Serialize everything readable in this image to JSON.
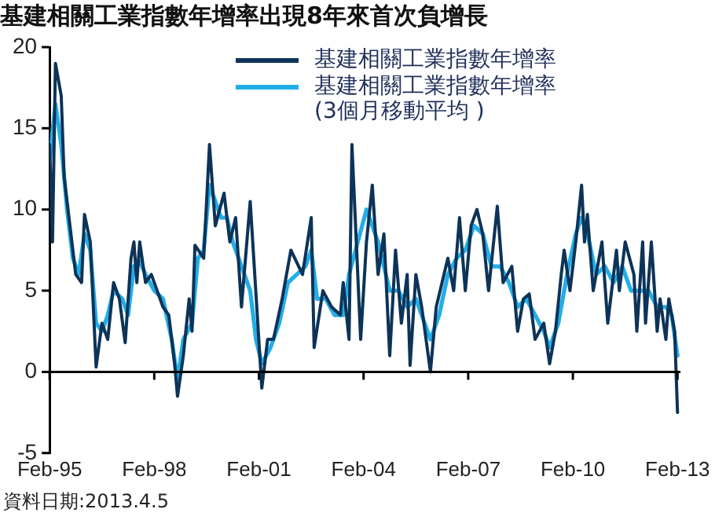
{
  "chart_data": {
    "type": "line",
    "title": "基建相關工業指數年增率出現8年來首次負增長",
    "xlim": [
      "1995-02",
      "2013-03"
    ],
    "xticks": [
      {
        "value": "1995-02",
        "label": "Feb-95"
      },
      {
        "value": "1998-02",
        "label": "Feb-98"
      },
      {
        "value": "2001-02",
        "label": "Feb-01"
      },
      {
        "value": "2004-02",
        "label": "Feb-04"
      },
      {
        "value": "2007-02",
        "label": "Feb-07"
      },
      {
        "value": "2010-02",
        "label": "Feb-10"
      },
      {
        "value": "2013-02",
        "label": "Feb-13"
      }
    ],
    "ylim": [
      -5,
      20
    ],
    "yticks": [
      -5,
      0,
      5,
      10,
      15,
      20
    ],
    "legend": "top right",
    "marker": "none",
    "line_style": "solid",
    "series": [
      {
        "name": "基建相關工業指數年增率",
        "color": "#0d3358",
        "x": [
          "1995-02",
          "1995-03",
          "1995-04",
          "1995-06",
          "1995-07",
          "1995-09",
          "1995-11",
          "1996-01",
          "1996-02",
          "1996-04",
          "1996-06",
          "1996-08",
          "1996-10",
          "1996-12",
          "1997-02",
          "1997-04",
          "1997-06",
          "1997-07",
          "1997-08",
          "1997-09",
          "1997-11",
          "1998-01",
          "1998-03",
          "1998-05",
          "1998-07",
          "1998-09",
          "1998-10",
          "1998-12",
          "1999-02",
          "1999-03",
          "1999-04",
          "1999-07",
          "1999-09",
          "1999-11",
          "2000-02",
          "2000-04",
          "2000-06",
          "2000-08",
          "2000-11",
          "2001-03",
          "2001-05",
          "2001-07",
          "2001-10",
          "2002-01",
          "2002-05",
          "2002-08",
          "2002-09",
          "2002-12",
          "2003-03",
          "2003-06",
          "2003-07",
          "2003-09",
          "2003-10",
          "2004-01",
          "2004-03",
          "2004-05",
          "2004-07",
          "2004-09",
          "2004-11",
          "2005-01",
          "2005-03",
          "2005-05",
          "2005-06",
          "2005-08",
          "2005-10",
          "2006-01",
          "2006-03",
          "2006-05",
          "2006-07",
          "2006-09",
          "2006-11",
          "2007-01",
          "2007-03",
          "2007-05",
          "2007-07",
          "2007-09",
          "2007-12",
          "2008-02",
          "2008-05",
          "2008-07",
          "2008-09",
          "2008-11",
          "2009-01",
          "2009-04",
          "2009-06",
          "2009-08",
          "2009-10",
          "2009-11",
          "2010-01",
          "2010-03",
          "2010-05",
          "2010-06",
          "2010-07",
          "2010-09",
          "2010-12",
          "2011-02",
          "2011-05",
          "2011-06",
          "2011-08",
          "2011-11",
          "2011-12",
          "2012-02",
          "2012-03",
          "2012-05",
          "2012-07",
          "2012-08",
          "2012-10",
          "2012-11",
          "2012-12",
          "2013-01",
          "2013-02"
        ],
        "values": [
          14,
          8,
          19,
          17,
          12,
          9,
          6,
          5.5,
          9.7,
          8,
          0.3,
          3,
          2,
          5.5,
          4.5,
          1.8,
          7,
          8,
          5.5,
          8,
          5.5,
          6,
          5,
          4,
          3.5,
          0.5,
          -1.5,
          1,
          4.5,
          2.5,
          7.8,
          7,
          14,
          9,
          11,
          8,
          9.5,
          4,
          10.5,
          -1,
          2,
          2,
          4.5,
          7.5,
          6,
          9.5,
          1.5,
          5,
          4,
          3.5,
          5.5,
          2,
          14,
          2,
          8,
          11.5,
          6,
          8.5,
          1,
          7.5,
          3,
          6,
          0.4,
          6,
          4,
          0,
          4,
          5.5,
          7,
          5,
          9.5,
          5,
          9,
          10,
          8.5,
          5,
          10.2,
          5.5,
          6.5,
          2.5,
          4.5,
          4.8,
          2,
          3,
          0.5,
          2.5,
          6,
          7.5,
          5,
          8,
          11.5,
          8,
          9.7,
          5,
          8,
          3,
          7.5,
          5,
          8,
          6,
          2.5,
          8,
          3,
          8,
          2.5,
          4.5,
          2,
          4.5,
          3.5,
          2.5,
          -2.5
        ]
      },
      {
        "name": "基建相關工業指數年增率\n(3個月移動平均 )",
        "color": "#22aee8",
        "x": [
          "1995-02",
          "1995-04",
          "1995-06",
          "1995-08",
          "1995-10",
          "1995-12",
          "1996-02",
          "1996-04",
          "1996-06",
          "1996-08",
          "1996-10",
          "1996-12",
          "1997-03",
          "1997-05",
          "1997-07",
          "1997-09",
          "1997-11",
          "1998-02",
          "1998-05",
          "1998-08",
          "1998-10",
          "1998-12",
          "1999-03",
          "1999-05",
          "1999-07",
          "1999-09",
          "1999-11",
          "2000-01",
          "2000-03",
          "2000-05",
          "2000-07",
          "2000-09",
          "2000-11",
          "2001-01",
          "2001-03",
          "2001-06",
          "2001-09",
          "2001-12",
          "2002-03",
          "2002-06",
          "2002-08",
          "2002-10",
          "2003-01",
          "2003-04",
          "2003-07",
          "2003-09",
          "2003-12",
          "2004-03",
          "2004-05",
          "2004-07",
          "2004-09",
          "2004-11",
          "2005-02",
          "2005-05",
          "2005-08",
          "2005-11",
          "2006-01",
          "2006-04",
          "2006-07",
          "2006-10",
          "2007-01",
          "2007-04",
          "2007-07",
          "2007-10",
          "2008-01",
          "2008-04",
          "2008-07",
          "2008-10",
          "2009-01",
          "2009-04",
          "2009-06",
          "2009-09",
          "2009-12",
          "2010-03",
          "2010-05",
          "2010-07",
          "2010-10",
          "2011-01",
          "2011-04",
          "2011-07",
          "2011-10",
          "2012-01",
          "2012-04",
          "2012-07",
          "2012-10",
          "2012-12",
          "2013-02"
        ],
        "values": [
          13,
          16.5,
          14,
          10,
          7,
          6,
          8.5,
          7.5,
          3,
          2.5,
          3.5,
          5,
          4.5,
          3.5,
          6.5,
          6.8,
          6,
          5,
          4.5,
          2,
          -0.5,
          2,
          3,
          7,
          7.5,
          11.5,
          10.5,
          9.5,
          9.5,
          8,
          7,
          6,
          5,
          2,
          0.5,
          1.5,
          3,
          5.5,
          6,
          6.5,
          7.5,
          4.5,
          4.5,
          3.5,
          3.5,
          6,
          8,
          10,
          9,
          8,
          6.5,
          5,
          5,
          4,
          4.5,
          3,
          2,
          3.5,
          6,
          7,
          7.5,
          9,
          8.5,
          6.5,
          6.5,
          5.5,
          4,
          4.5,
          3.5,
          2.5,
          1.5,
          3,
          6,
          8.5,
          9.5,
          8.5,
          6,
          6.5,
          5.5,
          6.5,
          5,
          5,
          5,
          4,
          4,
          3.5,
          1
        ]
      }
    ],
    "annotations": [
      "資料日期:2013.4.5"
    ]
  }
}
